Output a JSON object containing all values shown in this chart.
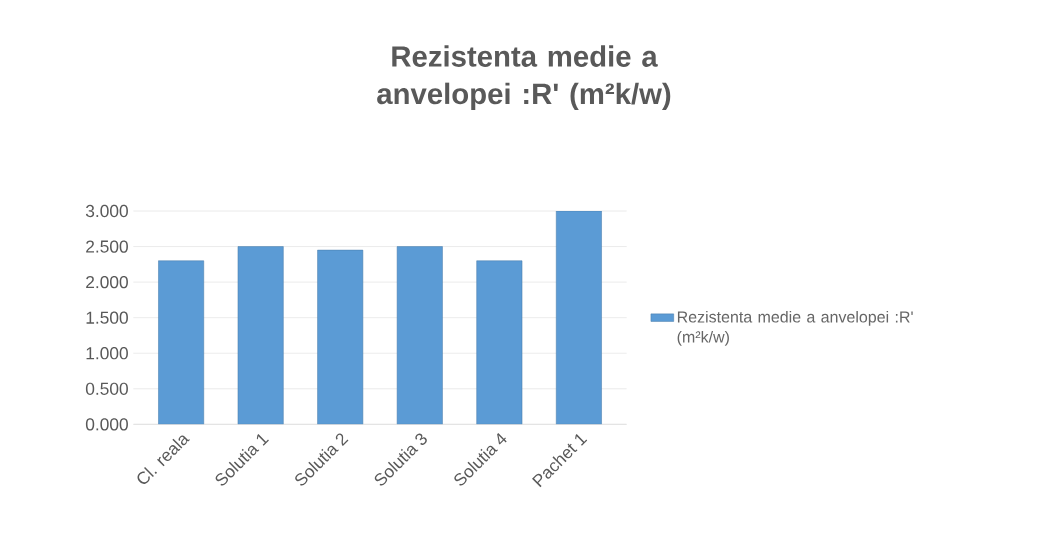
{
  "chart_data": {
    "type": "bar",
    "title": "Rezistenta medie a anvelopei :R' (m²k/w)",
    "categories": [
      "Cl. reala",
      "Solutia 1",
      "Solutia 2",
      "Solutia 3",
      "Solutia 4",
      "Pachet 1"
    ],
    "series": [
      {
        "name": "Rezistenta medie a anvelopei :R' (m²k/w)",
        "color": "#5b9bd5",
        "values": [
          2.3,
          2.5,
          2.45,
          2.5,
          2.3,
          3.0
        ]
      }
    ],
    "ylim": [
      0,
      3
    ],
    "yticks": [
      {
        "value": 0,
        "label": "0.000"
      },
      {
        "value": 0.5,
        "label": "0.500"
      },
      {
        "value": 1,
        "label": "1.000"
      },
      {
        "value": 1.5,
        "label": "1.500"
      },
      {
        "value": 2,
        "label": "2.000"
      },
      {
        "value": 2.5,
        "label": "2.500"
      },
      {
        "value": 3,
        "label": "3.000"
      }
    ],
    "grid": "y",
    "legend": "right"
  }
}
